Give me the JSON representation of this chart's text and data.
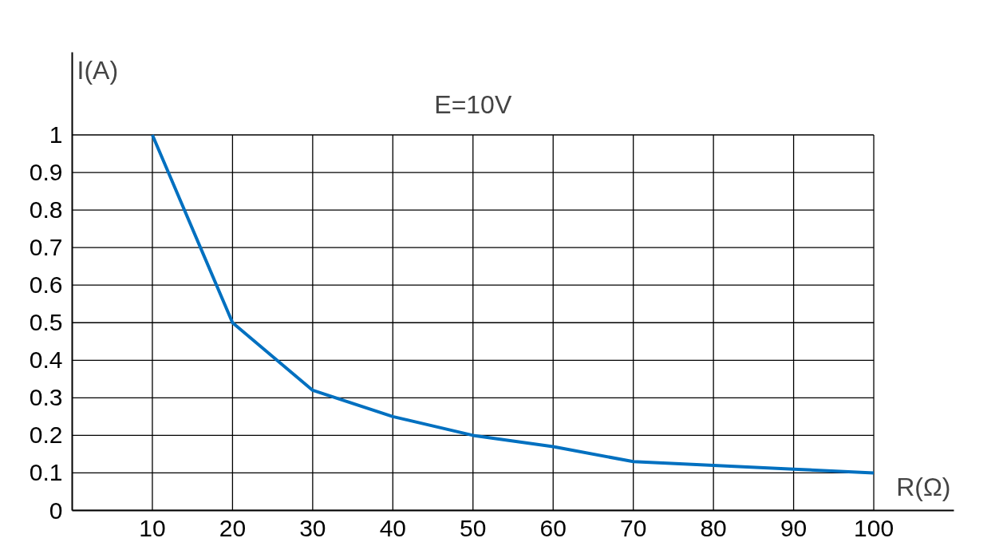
{
  "chart_data": {
    "type": "line",
    "title": "E=10V",
    "xlabel": "R(Ω)",
    "ylabel": "I(A)",
    "x": [
      10,
      20,
      30,
      40,
      50,
      60,
      70,
      80,
      90,
      100
    ],
    "series": [
      {
        "color": "#0070c0",
        "values": [
          1.0,
          0.5,
          0.32,
          0.25,
          0.2,
          0.17,
          0.13,
          0.12,
          0.11,
          0.1
        ]
      }
    ],
    "xlim": [
      0,
      110
    ],
    "ylim": [
      0,
      1.22
    ],
    "xticks": [
      10,
      20,
      30,
      40,
      50,
      60,
      70,
      80,
      90,
      100
    ],
    "yticks": [
      0,
      0.1,
      0.2,
      0.3,
      0.4,
      0.5,
      0.6,
      0.7,
      0.8,
      0.9,
      1
    ],
    "grid": true,
    "marker": "none",
    "line_style": "solid"
  }
}
